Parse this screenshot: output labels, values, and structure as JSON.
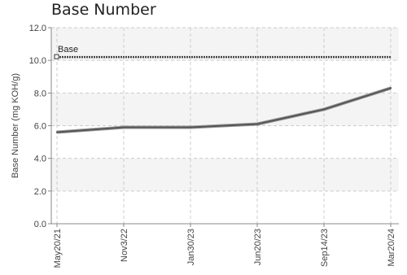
{
  "chart_data": {
    "type": "line",
    "title": "Base Number",
    "xlabel": "",
    "ylabel": "Base Number (mg KOH/g)",
    "categories": [
      "May20/21",
      "Nov3/22",
      "Jan30/23",
      "Jun20/23",
      "Sep14/23",
      "Mar20/24"
    ],
    "series": [
      {
        "values": [
          5.6,
          5.9,
          5.9,
          6.1,
          7.0,
          8.3
        ]
      }
    ],
    "reference_line": {
      "label": "Base",
      "value": 10.2
    },
    "yticks": [
      "0.0",
      "2.0",
      "4.0",
      "6.0",
      "8.0",
      "10.0",
      "12.0"
    ],
    "ylim": [
      0,
      12
    ],
    "grid": true,
    "colors": {
      "series": "#555555",
      "reference": "#444444",
      "band": "#f4f4f4",
      "grid": "#cccccc"
    }
  }
}
